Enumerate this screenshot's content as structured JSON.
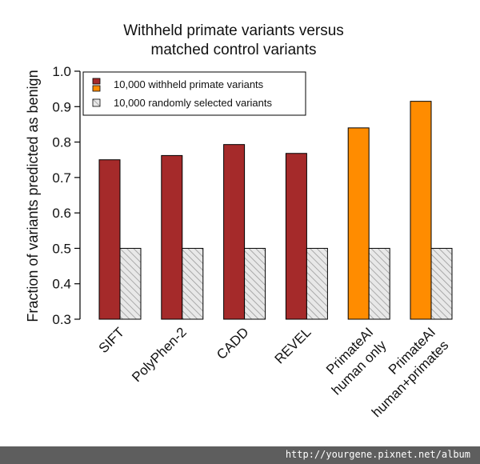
{
  "chart_data": {
    "type": "bar",
    "title_lines": [
      "Withheld primate variants versus",
      "matched control variants"
    ],
    "ylabel": "Fraction of variants predicted as benign",
    "xlabel": "",
    "ylim": [
      0.3,
      1.0
    ],
    "yticks": [
      "0.3",
      "0.4",
      "0.5",
      "0.6",
      "0.7",
      "0.8",
      "0.9",
      "1.0"
    ],
    "categories": [
      [
        "SIFT"
      ],
      [
        "PolyPhen-2"
      ],
      [
        "CADD"
      ],
      [
        "REVEL"
      ],
      [
        "PrimateAI",
        "human only"
      ],
      [
        "PrimateAI",
        "human+primates"
      ]
    ],
    "series": [
      {
        "name": "10,000 withheld primate variants",
        "values": [
          0.75,
          0.762,
          0.793,
          0.768,
          0.84,
          0.915
        ],
        "colors": [
          "#a52a2a",
          "#a52a2a",
          "#a52a2a",
          "#a52a2a",
          "#ff8c00",
          "#ff8c00"
        ]
      },
      {
        "name": "10,000 randomly selected variants",
        "values": [
          0.5,
          0.5,
          0.5,
          0.5,
          0.5,
          0.5
        ],
        "colors": [
          "hatched",
          "hatched",
          "hatched",
          "hatched",
          "hatched",
          "hatched"
        ]
      }
    ],
    "legend_colors": [
      "#a52a2a",
      "#ff8c00",
      "hatched"
    ],
    "legend_position": "top-left",
    "grid": false
  },
  "watermark": "http://yourgene.pixnet.net/album"
}
